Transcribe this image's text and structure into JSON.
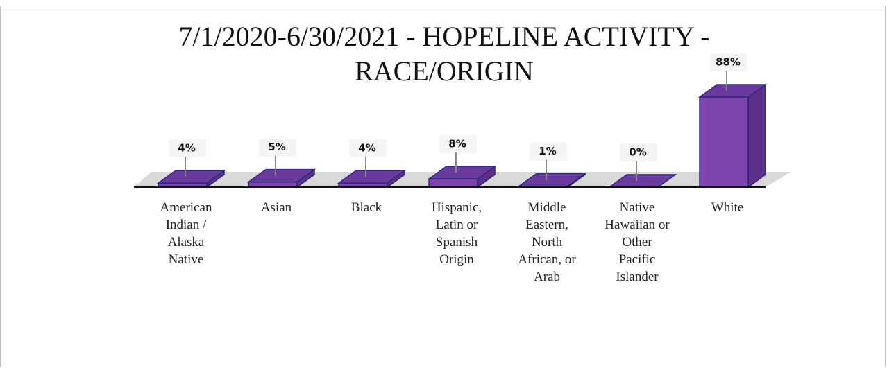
{
  "chart_data": {
    "type": "bar3d",
    "title": "7/1/2020-6/30/2021 - HOPELINE ACTIVITY - RACE/ORIGIN",
    "categories": [
      "American Indian / Alaska Native",
      "Asian",
      "Black",
      "Hispanic, Latin or Spanish Origin",
      "Middle Eastern, North African, or Arab",
      "Native Hawaiian or Other Pacific Islander",
      "White"
    ],
    "values": [
      4,
      5,
      4,
      8,
      1,
      0,
      88
    ],
    "value_labels": [
      "4%",
      "5%",
      "4%",
      "8%",
      "1%",
      "0%",
      "88%"
    ],
    "color": "#7d44ad"
  }
}
